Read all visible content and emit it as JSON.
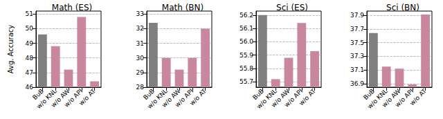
{
  "chart_data": [
    {
      "type": "bar",
      "title": "Math (ES)",
      "y_label": "Avg. Accuracy",
      "categories": [
        "BuB",
        "w/o KNL",
        "w/o AW",
        "w/o API",
        "w/o AT"
      ],
      "values": [
        49.6,
        48.8,
        47.2,
        50.8,
        46.4
      ],
      "colors": [
        "#808080",
        "#c9879f",
        "#c9879f",
        "#c9879f",
        "#c9879f"
      ],
      "ylim": [
        46,
        51.2
      ],
      "yticks": [
        46,
        47,
        48,
        49,
        50,
        51
      ],
      "grid": true
    },
    {
      "type": "bar",
      "title": "Math (BN)",
      "categories": [
        "BuB",
        "w/o KNL",
        "w/o AW",
        "w/o API",
        "w/o AT"
      ],
      "values": [
        32.4,
        30.0,
        29.2,
        30.0,
        32.0
      ],
      "colors": [
        "#808080",
        "#c9879f",
        "#c9879f",
        "#c9879f",
        "#c9879f"
      ],
      "ylim": [
        28,
        33.2
      ],
      "yticks": [
        28,
        29,
        30,
        31,
        32,
        33
      ],
      "grid": true
    },
    {
      "type": "bar",
      "title": "Sci (ES)",
      "categories": [
        "BuB",
        "w/o KNL",
        "w/o AW",
        "w/o API",
        "w/o AT"
      ],
      "values": [
        56.2,
        55.72,
        55.88,
        56.14,
        55.93
      ],
      "colors": [
        "#808080",
        "#c9879f",
        "#c9879f",
        "#c9879f",
        "#c9879f"
      ],
      "ylim": [
        55.66,
        56.23
      ],
      "yticks": [
        55.7,
        55.8,
        55.9,
        56.0,
        56.1,
        56.2
      ],
      "grid": true
    },
    {
      "type": "bar",
      "title": "Sci (BN)",
      "categories": [
        "BuB",
        "w/o KNL",
        "w/o AW",
        "w/o API",
        "w/o AT"
      ],
      "values": [
        37.64,
        37.15,
        37.12,
        36.89,
        37.91
      ],
      "colors": [
        "#808080",
        "#c9879f",
        "#c9879f",
        "#c9879f",
        "#c9879f"
      ],
      "ylim": [
        36.85,
        37.96
      ],
      "yticks": [
        36.9,
        37.1,
        37.3,
        37.5,
        37.7,
        37.9
      ],
      "grid": true
    }
  ]
}
